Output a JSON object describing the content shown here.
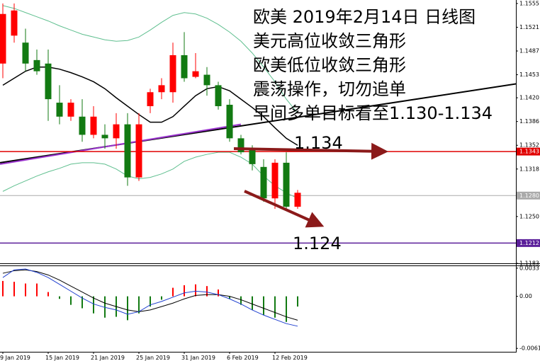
{
  "chart_data": [
    {
      "type": "candlestick",
      "categories": [
        "9 Jan 2019",
        null,
        null,
        null,
        "15 Jan 2019",
        null,
        null,
        null,
        "21 Jan 2019",
        null,
        null,
        null,
        "25 Jan 2019",
        null,
        null,
        null,
        "31 Jan 2019",
        null,
        null,
        null,
        "6 Feb 2019",
        null,
        null,
        null,
        "12 Feb 2019",
        null,
        null
      ],
      "open": [
        1.1469,
        1.1509,
        1.1499,
        1.1474,
        1.1469,
        1.1413,
        1.1393,
        1.1393,
        1.1367,
        1.1367,
        1.1362,
        1.1382,
        1.1306,
        1.1408,
        1.1428,
        1.1428,
        1.1481,
        1.145,
        1.1453,
        1.1438,
        1.141,
        1.1362,
        1.1347,
        1.1321,
        1.1276,
        1.1327,
        1.1264
      ],
      "high": [
        1.1555,
        1.1555,
        1.1519,
        1.1489,
        1.1489,
        1.1438,
        1.1418,
        1.1418,
        1.1408,
        1.1382,
        1.1398,
        1.1398,
        1.1398,
        1.1433,
        1.1448,
        1.1499,
        1.1514,
        1.1484,
        1.1464,
        1.1443,
        1.1418,
        1.1367,
        1.1352,
        1.1332,
        1.1332,
        1.1342,
        1.1288
      ],
      "low": [
        1.1448,
        1.1499,
        1.1458,
        1.1453,
        1.1387,
        1.1382,
        1.1387,
        1.1357,
        1.1362,
        1.1347,
        1.1347,
        1.1294,
        1.1301,
        1.1398,
        1.1418,
        1.1413,
        1.1443,
        1.1448,
        1.1423,
        1.1403,
        1.1357,
        1.1339,
        1.1316,
        1.1271,
        1.1261,
        1.1261,
        1.1261
      ],
      "close": [
        1.154,
        1.1545,
        1.1469,
        1.1458,
        1.1418,
        1.1393,
        1.1413,
        1.1367,
        1.1393,
        1.1362,
        1.1382,
        1.1306,
        1.1382,
        1.1428,
        1.1438,
        1.1481,
        1.1448,
        1.1458,
        1.1438,
        1.1408,
        1.1362,
        1.1342,
        1.1325,
        1.1276,
        1.1327,
        1.1264,
        1.1284
      ],
      "up_color": "#ff0000",
      "down_color": "#127a12",
      "ylim": [
        1.1183,
        1.156
      ],
      "yticks": [
        1.1555,
        1.1521,
        1.1487,
        1.1453,
        {
          "value": 1.142,
          "label": "1.1420"
        },
        1.1386,
        1.1352,
        1.1318,
        {
          "value": 1.125,
          "label": "1.1250"
        },
        1.1183
      ],
      "bands": [
        {
          "color": "#5fbf8f",
          "values": [
            1.1552,
            1.1548,
            1.1542,
            1.1536,
            1.153,
            1.1523,
            1.1517,
            1.1511,
            1.1507,
            1.1503,
            1.1501,
            1.1502,
            1.1507,
            1.1517,
            1.1528,
            1.1538,
            1.1542,
            1.154,
            1.1534,
            1.1525,
            1.1514,
            1.1501,
            1.1484,
            1.1464,
            1.1443,
            1.1418,
            1.1398
          ]
        },
        {
          "color": "#000000",
          "values": [
            1.1438,
            1.1448,
            1.1458,
            1.1464,
            1.1464,
            1.1461,
            1.1456,
            1.145,
            1.1443,
            1.1433,
            1.142,
            1.1408,
            1.1396,
            1.1385,
            1.1385,
            1.1393,
            1.1408,
            1.1423,
            1.1433,
            1.1436,
            1.143,
            1.1418,
            1.1406,
            1.1393,
            1.1377,
            1.1362,
            1.1352
          ]
        },
        {
          "color": "#5fbf8f",
          "values": [
            1.1286,
            1.1294,
            1.1301,
            1.1308,
            1.1314,
            1.1319,
            1.1325,
            1.1327,
            1.1327,
            1.1325,
            1.1318,
            1.1308,
            1.1304,
            1.1306,
            1.1311,
            1.1318,
            1.1329,
            1.1335,
            1.1339,
            1.1342,
            1.1342,
            1.1335,
            1.1325,
            1.1308,
            1.1294,
            1.1284,
            1.1276
          ]
        }
      ],
      "trendlines": [
        {
          "color": "#000000",
          "x": [
            -0.25,
            45.3
          ],
          "y": [
            1.1327,
            1.144
          ]
        },
        {
          "color": "#9933cc",
          "x": [
            -0.25,
            21
          ],
          "y": [
            1.1325,
            1.1382
          ]
        }
      ],
      "levels": [
        {
          "value": 1.1343,
          "color": "#e00000"
        },
        {
          "value": 1.128,
          "label": "1.1280",
          "color": "#aaaaaa"
        },
        {
          "value": 1.1212,
          "color": "#5b1f9a"
        }
      ],
      "annotations": [
        "欧美 2019年2月14日 日线图",
        "美元高位收敛三角形",
        "欧美低位收敛三角形",
        "震荡操作，切勿追单",
        "早间多单目标看至1.130-1.134"
      ],
      "target_labels": [
        "1.134",
        "1.124"
      ]
    },
    {
      "type": "macd",
      "ylim": [
        -0.0065,
        0.0037
      ],
      "yticks": [
        0.0033,
        {
          "value": 0,
          "label": "0.00"
        },
        -0.0061
      ],
      "up_color": "#ff0000",
      "down_color": "#127a12",
      "histogram": [
        0.0018,
        0.0017,
        0.0015,
        0.0015,
        0.0005,
        -0.0003,
        -0.001,
        -0.0014,
        -0.002,
        -0.0025,
        -0.0024,
        -0.0028,
        -0.002,
        -0.0012,
        -0.0004,
        0.001,
        0.0013,
        0.0014,
        0.0012,
        0.0008,
        -0.0003,
        -0.001,
        -0.0016,
        -0.0022,
        -0.0025,
        -0.003,
        -0.0012
      ],
      "lines": [
        {
          "color": "#000000",
          "values": [
            0.0027,
            0.003,
            0.0031,
            0.0029,
            0.0025,
            0.0019,
            0.0012,
            0.0005,
            -0.0002,
            -0.0008,
            -0.0012,
            -0.0016,
            -0.0018,
            -0.0016,
            -0.0012,
            -0.0008,
            -0.0003,
            0.0001,
            0.0002,
            0.0002,
            0,
            -0.0004,
            -0.0009,
            -0.0014,
            -0.0019,
            -0.0024,
            -0.0028
          ]
        },
        {
          "color": "#2040d0",
          "values": [
            0.0022,
            0.0031,
            0.0032,
            0.0028,
            0.0022,
            0.0014,
            0.0006,
            -0.0002,
            -0.0009,
            -0.0013,
            -0.0016,
            -0.0021,
            -0.0018,
            -0.001,
            -0.0006,
            -0.0001,
            0.0004,
            0.0006,
            0.0005,
            0.0002,
            -0.0003,
            -0.0009,
            -0.0016,
            -0.0022,
            -0.0027,
            -0.0032,
            -0.0035
          ]
        }
      ]
    }
  ]
}
